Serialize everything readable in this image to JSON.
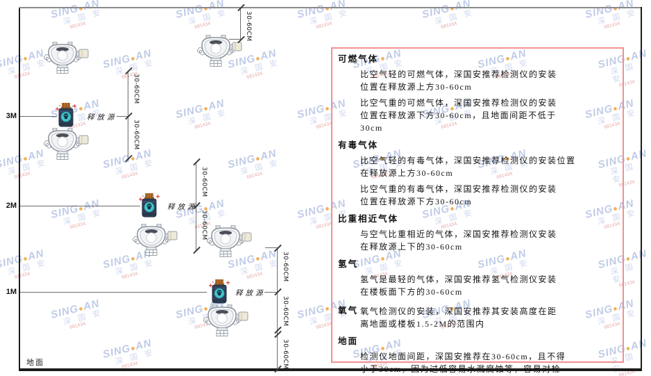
{
  "watermark": {
    "brand_left": "SING",
    "brand_dot": "●",
    "brand_right": "AN",
    "cjk": "深 国 安",
    "code": "681434"
  },
  "diagram": {
    "heights": [
      "3M",
      "2M",
      "1M"
    ],
    "dim_label": "30-60CM",
    "source_label": "释放源",
    "ground_label": "地面"
  },
  "panel": {
    "sections": [
      {
        "heading": "可燃气体",
        "paras": [
          "比空气轻的可燃气体，深国安推荐检测仪的安装\n位置在释放源上方30-60cm",
          "比空气重的可燃气体，深国安推荐检测仪的安装\n位置在释放源下方30-60cm，且地面间距不低于\n30cm"
        ]
      },
      {
        "heading": "有毒气体",
        "paras": [
          "比空气轻的有毒气体，深国安推荐检测仪的安装位置\n在释放源上方30-60cm",
          "比空气重的有毒气体，深国安推荐检测仪的安装\n位置在释放源下方30-60cm"
        ]
      },
      {
        "heading": "比重相近气体",
        "paras": [
          "与空气比重相近的气体，深国安推荐检测仪安装\n在释放源上下的30-60cm"
        ]
      },
      {
        "heading": "氢气",
        "paras": [
          "氢气是最轻的气体，深国安推荐氢气检测仪安装\n在楼板面下方的30-60cm"
        ]
      },
      {
        "heading": "氧气",
        "paras": [
          "氧气检测仪的安装，深国安推荐其安装高度在距\n离地面或楼板1.5-2M的范围内"
        ]
      },
      {
        "heading": "地面",
        "paras": [
          "检测仪地面间距，深国安推荐在30-60cm，且不得\n小于30cm，因为过低容易水溅腐蚀等，容易对检\n测仪造成伤害"
        ]
      }
    ]
  },
  "colors": {
    "panel_border": "#f29090",
    "watermark_blue": "#b5c2e2",
    "watermark_orange": "#f2a33c",
    "watermark_red": "#e49b9b",
    "source_body": "#2e3e55",
    "source_cap": "#b97433",
    "source_emblem": "#45c4cd",
    "line_gray": "#6b6b6b"
  }
}
